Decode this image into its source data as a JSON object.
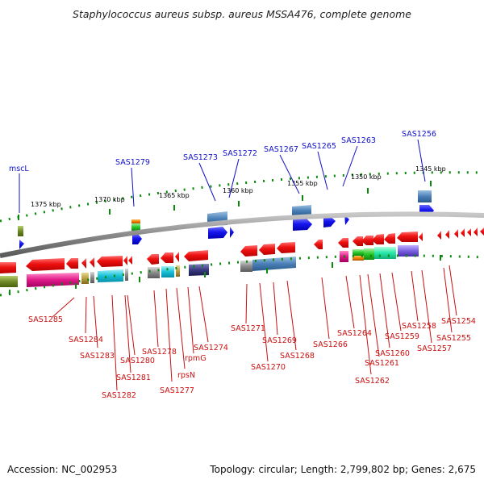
{
  "header": {
    "title": "Staphylococcus aureus subsp. aureus MSSA476, complete genome"
  },
  "footer": {
    "accession": "Accession: NC_002953",
    "summary": "Topology: circular; Length: 2,799,802 bp; Genes: 2,675"
  },
  "scale": {
    "kbp_labels": [
      "1375 kbp",
      "1370 kbp",
      "1365 kbp",
      "1360 kbp",
      "1355 kbp",
      "1350 kbp",
      "1345 kbp"
    ]
  },
  "genes": {
    "top_labels": [
      "mscL",
      "SAS1279",
      "SAS1273",
      "SAS1272",
      "SAS1267",
      "SAS1265",
      "SAS1263",
      "SAS1256"
    ],
    "bottom_labels": [
      "SAS1285",
      "SAS1284",
      "SAS1283",
      "SAS1280",
      "SAS1281",
      "SAS1282",
      "SAS1278",
      "SAS1277",
      "rpsN",
      "rpmG",
      "SAS1274",
      "SAS1271",
      "SAS1270",
      "SAS1269",
      "SAS1268",
      "SAS1266",
      "SAS1264",
      "SAS1262",
      "SAS1261",
      "SAS1260",
      "SAS1259",
      "SAS1258",
      "SAS1257",
      "SAS1255",
      "SAS1254"
    ]
  },
  "colors": {
    "forward_strand": "#1a1ae6",
    "reverse_strand": "#e60f0f",
    "backbone": "#7a7a7a",
    "tick": "#0a8a0a",
    "top_label": "#1010c8",
    "bottom_label": "#c81010"
  }
}
